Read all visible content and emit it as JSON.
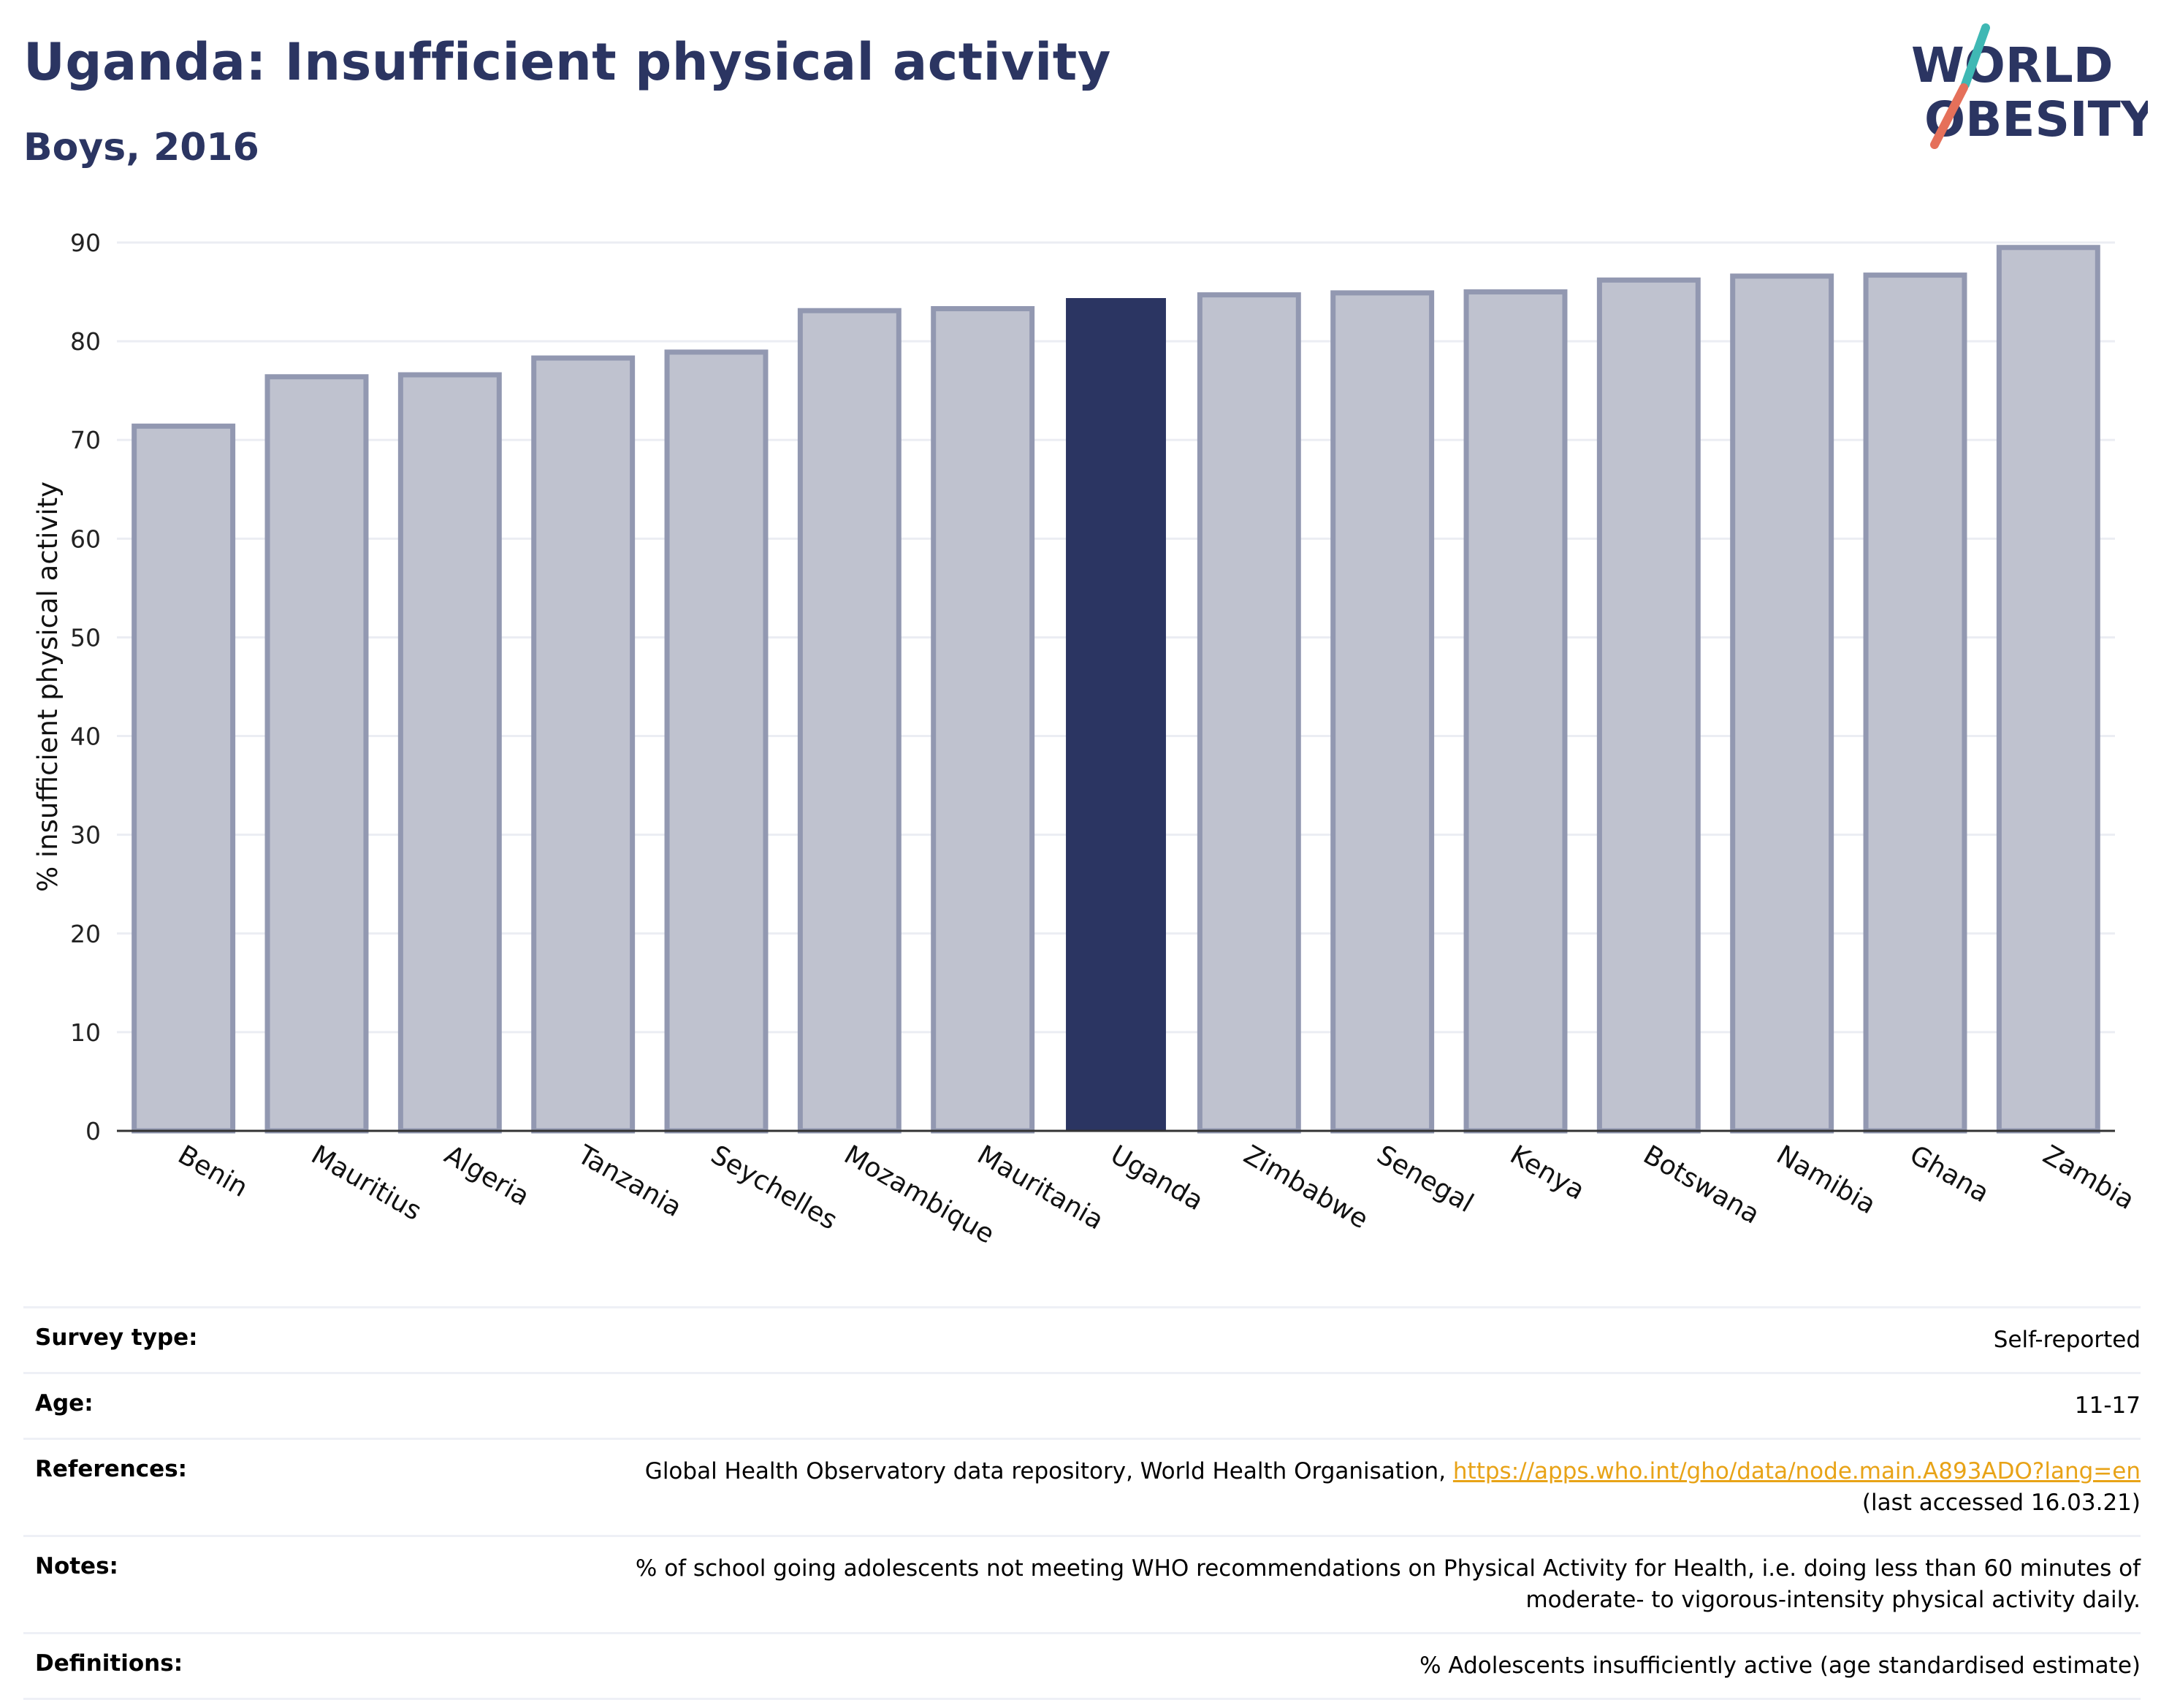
{
  "header": {
    "title": "Uganda: Insufficient physical activity",
    "subtitle": "Boys, 2016"
  },
  "logo": {
    "line1": "WORLD",
    "line2": "OBESITY",
    "slash_top": "#3fb8b4",
    "slash_bottom": "#e5705a"
  },
  "colors": {
    "bar": "#bfc2cf",
    "bar_border": "#9298b1",
    "highlight": "#2b3562",
    "grid": "#ebedf3",
    "axis": "#333333"
  },
  "chart_data": {
    "type": "bar",
    "title": "Uganda: Insufficient physical activity",
    "subtitle": "Boys, 2016",
    "ylabel": "% insufficient physical activity",
    "xlabel": "",
    "ylim": [
      0,
      90
    ],
    "yticks": [
      0,
      10,
      20,
      30,
      40,
      50,
      60,
      70,
      80,
      90
    ],
    "grid": true,
    "highlight": "Uganda",
    "categories": [
      "Benin",
      "Mauritius",
      "Algeria",
      "Tanzania",
      "Seychelles",
      "Mozambique",
      "Mauritania",
      "Uganda",
      "Zimbabwe",
      "Senegal",
      "Kenya",
      "Botswana",
      "Namibia",
      "Ghana",
      "Zambia"
    ],
    "values": [
      71.4,
      76.4,
      76.6,
      78.3,
      78.9,
      83.1,
      83.3,
      84.3,
      84.7,
      84.9,
      85.0,
      86.2,
      86.6,
      86.7,
      89.5
    ]
  },
  "info": {
    "survey_type": {
      "label": "Survey type:",
      "value": "Self-reported"
    },
    "age": {
      "label": "Age:",
      "value": "11-17"
    },
    "references": {
      "label": "References:",
      "text": "Global Health Observatory data repository, World Health Organisation, ",
      "link": "https://apps.who.int/gho/data/node.main.A893ADO?lang=en",
      "accessed": "(last accessed 16.03.21)"
    },
    "notes": {
      "label": "Notes:",
      "line1": "% of school going adolescents not meeting WHO recommendations on Physical Activity for Health, i.e. doing less than 60 minutes of",
      "line2": "moderate- to vigorous-intensity physical activity daily."
    },
    "definitions": {
      "label": "Definitions:",
      "value": "% Adolescents insufficiently active (age standardised estimate)"
    }
  }
}
